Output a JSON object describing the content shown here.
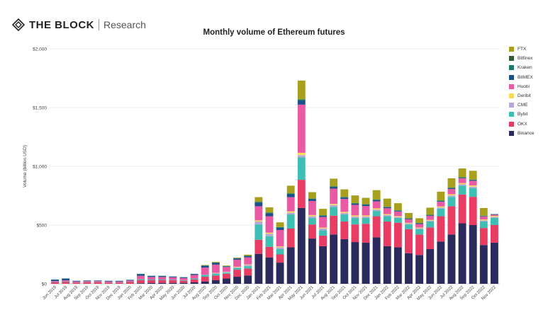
{
  "brand": {
    "name": "THE BLOCK",
    "sub": "Research"
  },
  "chart_data": {
    "type": "bar",
    "stacked": true,
    "title": "Monthly volume of Ethereum futures",
    "xlabel": "",
    "ylabel": "Volume (billion USD)",
    "ylim": [
      0,
      2000
    ],
    "yticks": [
      "$0",
      "$500",
      "$1,000",
      "$1,500",
      "$2,000"
    ],
    "grid": true,
    "legend_position": "right",
    "categories": [
      "Jun 2019",
      "Jul 2019",
      "Aug 2019",
      "Sep 2019",
      "Oct 2019",
      "Nov 2019",
      "Dec 2019",
      "Jan 2020",
      "Feb 2020",
      "Mar 2020",
      "Apr 2020",
      "May 2020",
      "Jun 2020",
      "Jul 2020",
      "Aug 2020",
      "Sep 2020",
      "Oct 2020",
      "Nov 2020",
      "Dec 2020",
      "Jan 2021",
      "Feb 2021",
      "Mar 2021",
      "Apr 2021",
      "May 2021",
      "Jun 2021",
      "Jul 2021",
      "Aug 2021",
      "Sep 2021",
      "Oct 2021",
      "Nov 2021",
      "Dec 2021",
      "Jan 2022",
      "Feb 2022",
      "Mar 2022",
      "Apr 2022",
      "May 2022",
      "Jun 2022",
      "Jul 2022",
      "Aug 2022",
      "Sep 2022",
      "Oct 2022",
      "Nov 2022"
    ],
    "series": [
      {
        "name": "Binance",
        "color": "#2b2a5c",
        "values": [
          0,
          0,
          0,
          0,
          0,
          0,
          0,
          0,
          5,
          8,
          8,
          8,
          8,
          12,
          20,
          30,
          45,
          60,
          70,
          255,
          225,
          180,
          310,
          645,
          385,
          320,
          420,
          380,
          355,
          350,
          395,
          320,
          310,
          260,
          245,
          295,
          360,
          420,
          515,
          500,
          330,
          350
        ]
      },
      {
        "name": "OKX",
        "color": "#e83c63",
        "values": [
          12,
          15,
          10,
          12,
          12,
          10,
          10,
          15,
          25,
          22,
          22,
          22,
          18,
          25,
          40,
          40,
          40,
          60,
          60,
          120,
          90,
          70,
          160,
          240,
          120,
          90,
          160,
          150,
          150,
          160,
          180,
          210,
          210,
          205,
          175,
          185,
          215,
          240,
          245,
          240,
          145,
          150
        ]
      },
      {
        "name": "Bybit",
        "color": "#3dbfb3",
        "values": [
          3,
          4,
          2,
          2,
          2,
          2,
          2,
          3,
          8,
          6,
          6,
          5,
          5,
          8,
          15,
          15,
          10,
          15,
          20,
          130,
          90,
          45,
          120,
          190,
          55,
          45,
          75,
          60,
          55,
          50,
          45,
          45,
          40,
          40,
          45,
          50,
          65,
          80,
          75,
          75,
          55,
          60
        ]
      },
      {
        "name": "CME",
        "color": "#b7a6d8",
        "values": [
          0,
          0,
          0,
          0,
          0,
          0,
          0,
          0,
          0,
          0,
          0,
          0,
          0,
          0,
          3,
          5,
          5,
          5,
          10,
          25,
          20,
          15,
          15,
          20,
          15,
          15,
          15,
          12,
          12,
          12,
          12,
          10,
          8,
          8,
          8,
          8,
          10,
          12,
          12,
          12,
          10,
          10
        ]
      },
      {
        "name": "Deribit",
        "color": "#f5dd5a",
        "values": [
          0,
          0,
          0,
          0,
          0,
          0,
          0,
          0,
          0,
          0,
          0,
          0,
          0,
          0,
          0,
          3,
          3,
          5,
          5,
          10,
          10,
          8,
          12,
          20,
          10,
          8,
          10,
          10,
          10,
          10,
          10,
          8,
          8,
          6,
          6,
          6,
          8,
          10,
          10,
          10,
          8,
          8
        ]
      },
      {
        "name": "Huobi",
        "color": "#ea5aa4",
        "values": [
          8,
          10,
          8,
          8,
          8,
          8,
          8,
          10,
          30,
          22,
          22,
          20,
          18,
          30,
          60,
          70,
          40,
          60,
          60,
          120,
          140,
          140,
          120,
          410,
          120,
          90,
          130,
          110,
          90,
          80,
          60,
          50,
          40,
          30,
          30,
          35,
          40,
          45,
          40,
          40,
          25,
          10
        ]
      },
      {
        "name": "BitMEX",
        "color": "#1b4f8a",
        "values": [
          12,
          15,
          5,
          5,
          5,
          5,
          5,
          5,
          15,
          8,
          8,
          6,
          6,
          8,
          15,
          15,
          5,
          10,
          10,
          30,
          25,
          20,
          25,
          35,
          15,
          10,
          15,
          12,
          10,
          10,
          10,
          8,
          6,
          5,
          5,
          5,
          6,
          6,
          5,
          5,
          4,
          3
        ]
      },
      {
        "name": "Kraken",
        "color": "#177a6d",
        "values": [
          2,
          2,
          1,
          1,
          1,
          1,
          1,
          1,
          2,
          2,
          2,
          2,
          2,
          2,
          3,
          3,
          2,
          3,
          3,
          8,
          6,
          5,
          8,
          10,
          5,
          5,
          5,
          5,
          5,
          5,
          5,
          4,
          4,
          4,
          4,
          4,
          5,
          5,
          5,
          5,
          3,
          3
        ]
      },
      {
        "name": "Bitfinex",
        "color": "#2f5d35",
        "values": [
          0,
          0,
          0,
          0,
          0,
          0,
          0,
          0,
          0,
          0,
          0,
          0,
          0,
          0,
          0,
          0,
          0,
          0,
          0,
          0,
          0,
          0,
          0,
          0,
          0,
          0,
          0,
          0,
          0,
          0,
          0,
          0,
          0,
          0,
          0,
          0,
          0,
          0,
          0,
          0,
          0,
          0
        ]
      },
      {
        "name": "FTX",
        "color": "#a8a01c",
        "values": [
          0,
          0,
          0,
          0,
          0,
          0,
          0,
          0,
          0,
          0,
          0,
          0,
          0,
          0,
          4,
          5,
          5,
          5,
          10,
          40,
          45,
          40,
          65,
          160,
          55,
          55,
          65,
          65,
          65,
          55,
          80,
          70,
          60,
          45,
          40,
          60,
          75,
          80,
          75,
          75,
          65,
          0
        ]
      }
    ],
    "legend_order": [
      "FTX",
      "Bitfinex",
      "Kraken",
      "BitMEX",
      "Huobi",
      "Deribit",
      "CME",
      "Bybit",
      "OKX",
      "Binance"
    ]
  }
}
